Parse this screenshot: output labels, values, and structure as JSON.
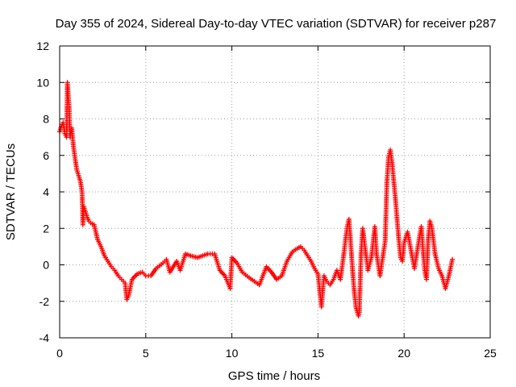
{
  "chart_data": {
    "type": "scatter",
    "title": "Day 355 of 2024, Sidereal Day-to-day VTEC variation (SDTVAR) for receiver p287",
    "xlabel": "GPS time / hours",
    "ylabel": "SDTVAR / TECUs",
    "xlim": [
      0,
      25
    ],
    "ylim": [
      -4,
      12
    ],
    "xticks": [
      0,
      5,
      10,
      15,
      20,
      25
    ],
    "yticks": [
      -4,
      -2,
      0,
      2,
      4,
      6,
      8,
      10,
      12
    ],
    "grid": true,
    "marker": "plus",
    "color": "#ff0000",
    "series": [
      {
        "name": "SDTVAR",
        "points": [
          [
            0.0,
            7.3
          ],
          [
            0.1,
            7.6
          ],
          [
            0.2,
            7.8
          ],
          [
            0.3,
            7.2
          ],
          [
            0.4,
            7.0
          ],
          [
            0.45,
            10.0
          ],
          [
            0.5,
            9.3
          ],
          [
            0.55,
            8.6
          ],
          [
            0.6,
            7.0
          ],
          [
            0.7,
            7.5
          ],
          [
            0.8,
            6.5
          ],
          [
            0.9,
            5.8
          ],
          [
            1.0,
            5.2
          ],
          [
            1.1,
            4.9
          ],
          [
            1.2,
            4.6
          ],
          [
            1.3,
            4.0
          ],
          [
            1.35,
            2.2
          ],
          [
            1.4,
            3.2
          ],
          [
            1.5,
            2.9
          ],
          [
            1.6,
            2.6
          ],
          [
            1.7,
            2.4
          ],
          [
            1.8,
            2.3
          ],
          [
            2.0,
            2.2
          ],
          [
            2.2,
            1.4
          ],
          [
            2.4,
            1.0
          ],
          [
            2.6,
            0.5
          ],
          [
            2.8,
            0.2
          ],
          [
            3.0,
            -0.1
          ],
          [
            3.2,
            -0.3
          ],
          [
            3.4,
            -0.6
          ],
          [
            3.6,
            -0.8
          ],
          [
            3.8,
            -1.0
          ],
          [
            3.9,
            -1.9
          ],
          [
            4.0,
            -1.7
          ],
          [
            4.2,
            -0.8
          ],
          [
            4.5,
            -0.5
          ],
          [
            4.8,
            -0.4
          ],
          [
            5.0,
            -0.6
          ],
          [
            5.3,
            -0.6
          ],
          [
            5.6,
            -0.2
          ],
          [
            6.0,
            0.1
          ],
          [
            6.2,
            0.3
          ],
          [
            6.4,
            -0.4
          ],
          [
            6.8,
            0.2
          ],
          [
            7.0,
            -0.3
          ],
          [
            7.3,
            0.6
          ],
          [
            7.6,
            0.5
          ],
          [
            8.0,
            0.4
          ],
          [
            8.3,
            0.5
          ],
          [
            8.6,
            0.6
          ],
          [
            9.0,
            0.6
          ],
          [
            9.3,
            -0.3
          ],
          [
            9.6,
            -0.6
          ],
          [
            9.9,
            -1.3
          ],
          [
            10.0,
            0.4
          ],
          [
            10.3,
            0.1
          ],
          [
            10.6,
            -0.4
          ],
          [
            11.0,
            -0.7
          ],
          [
            11.3,
            -0.9
          ],
          [
            11.6,
            -1.1
          ],
          [
            12.0,
            -0.1
          ],
          [
            12.3,
            -0.4
          ],
          [
            12.6,
            -0.8
          ],
          [
            12.9,
            -0.6
          ],
          [
            13.2,
            0.2
          ],
          [
            13.5,
            0.7
          ],
          [
            13.8,
            0.9
          ],
          [
            14.0,
            1.0
          ],
          [
            14.2,
            0.8
          ],
          [
            14.4,
            0.5
          ],
          [
            14.6,
            0.2
          ],
          [
            14.8,
            -0.2
          ],
          [
            15.0,
            -0.5
          ],
          [
            15.1,
            -1.4
          ],
          [
            15.2,
            -2.3
          ],
          [
            15.35,
            -0.6
          ],
          [
            15.5,
            -0.9
          ],
          [
            15.7,
            -1.1
          ],
          [
            15.9,
            -0.8
          ],
          [
            16.1,
            -0.3
          ],
          [
            16.3,
            -0.8
          ],
          [
            16.5,
            0.6
          ],
          [
            16.6,
            1.4
          ],
          [
            16.7,
            2.1
          ],
          [
            16.8,
            2.5
          ],
          [
            16.9,
            1.2
          ],
          [
            17.0,
            -0.2
          ],
          [
            17.1,
            -1.4
          ],
          [
            17.2,
            -2.3
          ],
          [
            17.35,
            -2.8
          ],
          [
            17.4,
            -2.6
          ],
          [
            17.5,
            0.6
          ],
          [
            17.6,
            2.0
          ],
          [
            17.7,
            1.2
          ],
          [
            17.9,
            -0.3
          ],
          [
            18.1,
            0.4
          ],
          [
            18.3,
            2.1
          ],
          [
            18.4,
            0.6
          ],
          [
            18.6,
            -0.6
          ],
          [
            18.9,
            1.3
          ],
          [
            19.0,
            4.5
          ],
          [
            19.1,
            5.9
          ],
          [
            19.2,
            6.3
          ],
          [
            19.3,
            5.6
          ],
          [
            19.4,
            4.6
          ],
          [
            19.5,
            3.6
          ],
          [
            19.6,
            2.4
          ],
          [
            19.7,
            1.3
          ],
          [
            19.8,
            0.4
          ],
          [
            19.9,
            0.2
          ],
          [
            20.0,
            1.2
          ],
          [
            20.2,
            1.8
          ],
          [
            20.4,
            0.8
          ],
          [
            20.6,
            -0.2
          ],
          [
            20.8,
            1.0
          ],
          [
            21.0,
            2.1
          ],
          [
            21.1,
            0.8
          ],
          [
            21.2,
            -0.3
          ],
          [
            21.3,
            -0.8
          ],
          [
            21.4,
            1.4
          ],
          [
            21.5,
            2.4
          ],
          [
            21.6,
            2.1
          ],
          [
            21.8,
            0.6
          ],
          [
            22.0,
            -0.2
          ],
          [
            22.2,
            -0.6
          ],
          [
            22.4,
            -1.3
          ],
          [
            22.6,
            -0.6
          ],
          [
            22.8,
            0.3
          ]
        ]
      }
    ]
  }
}
